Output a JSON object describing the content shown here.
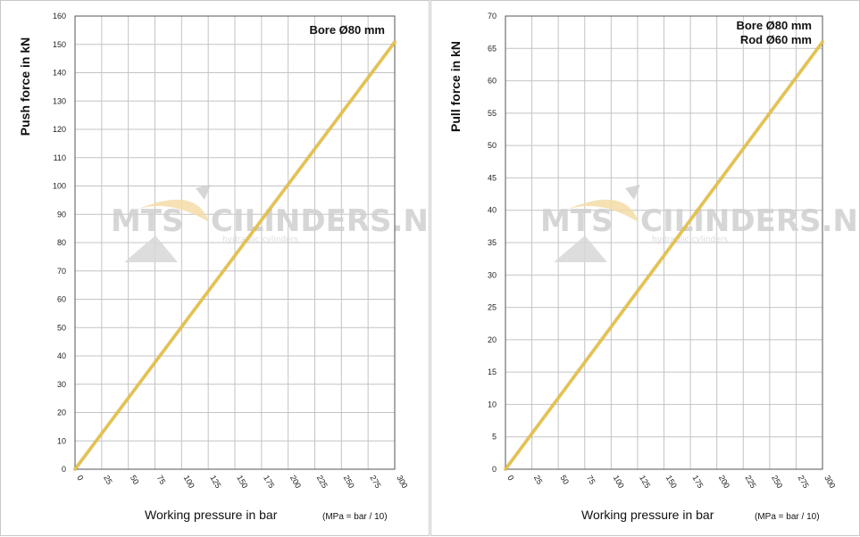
{
  "watermark": {
    "brand_left": "MTS",
    "brand_right": "CILINDERS.NL",
    "tagline": "hydraulic cylinders"
  },
  "chart_data": [
    {
      "type": "line",
      "ylabel": "Push force in kN",
      "xlabel": "Working pressure in bar",
      "xlabel_note": "(MPa = bar / 10)",
      "annotation": [
        "Bore Ø80 mm"
      ],
      "xlim": [
        0,
        300
      ],
      "ylim": [
        0,
        160
      ],
      "xticks": [
        0,
        25,
        50,
        75,
        100,
        125,
        150,
        175,
        200,
        225,
        250,
        275,
        300
      ],
      "yticks": [
        0,
        10,
        20,
        30,
        40,
        50,
        60,
        70,
        80,
        90,
        100,
        110,
        120,
        130,
        140,
        150,
        160
      ],
      "grid": true,
      "line_color": "#e6c24a",
      "series": [
        {
          "x": [
            0,
            300
          ],
          "y": [
            0,
            150.8
          ]
        }
      ]
    },
    {
      "type": "line",
      "ylabel": "Pull force in kN",
      "xlabel": "Working pressure in bar",
      "xlabel_note": "(MPa = bar / 10)",
      "annotation": [
        "Bore Ø80 mm",
        "Rod  Ø60 mm"
      ],
      "xlim": [
        0,
        300
      ],
      "ylim": [
        0,
        70
      ],
      "xticks": [
        0,
        25,
        50,
        75,
        100,
        125,
        150,
        175,
        200,
        225,
        250,
        275,
        300
      ],
      "yticks": [
        0,
        5,
        10,
        15,
        20,
        25,
        30,
        35,
        40,
        45,
        50,
        55,
        60,
        65,
        70
      ],
      "grid": true,
      "line_color": "#e6c24a",
      "series": [
        {
          "x": [
            0,
            300
          ],
          "y": [
            0,
            66.0
          ]
        }
      ]
    }
  ]
}
